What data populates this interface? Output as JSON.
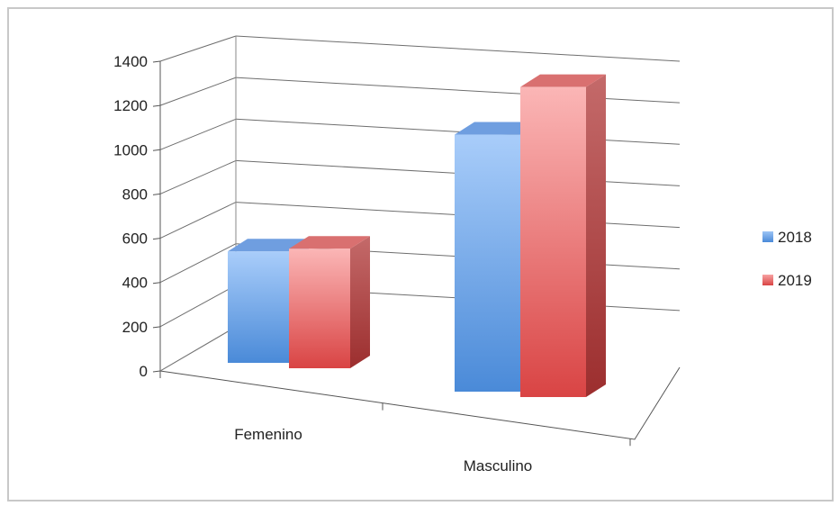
{
  "chart_data": {
    "type": "bar",
    "categories": [
      "Femenino",
      "Masculino"
    ],
    "series": [
      {
        "name": "2018",
        "values": [
          550,
          1115
        ],
        "color": "#6fa6e8"
      },
      {
        "name": "2019",
        "values": [
          590,
          1345
        ],
        "color": "#e87c7c"
      }
    ],
    "yticks": [
      "0",
      "200",
      "400",
      "600",
      "800",
      "1000",
      "1200",
      "1400"
    ],
    "ylim": [
      0,
      1400
    ],
    "grid": true,
    "legend_position": "right",
    "style": "3d-clustered-column"
  }
}
